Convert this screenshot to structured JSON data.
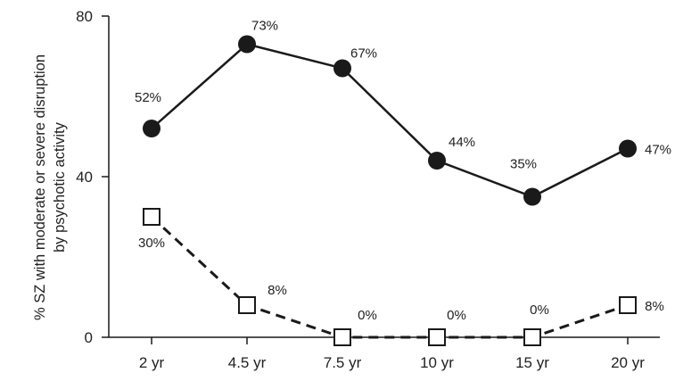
{
  "chart_data": {
    "type": "line",
    "categories": [
      "2 yr",
      "4.5 yr",
      "7.5 yr",
      "10 yr",
      "15 yr",
      "20 yr"
    ],
    "ylabel_line1": "% SZ with moderate or severe disruption",
    "ylabel_line2": "by psychotic activity",
    "ylim": [
      0,
      80
    ],
    "yticks": [
      "0",
      "40",
      "80"
    ],
    "grid": false,
    "legend": "none",
    "series": [
      {
        "marker": "filled-circle",
        "line": "solid",
        "color": "#1a1a1a",
        "values": [
          52,
          73,
          67,
          44,
          35,
          47
        ],
        "labels": [
          "52%",
          "73%",
          "67%",
          "44%",
          "35%",
          "47%"
        ]
      },
      {
        "marker": "open-square",
        "line": "dashed",
        "color": "#1a1a1a",
        "values": [
          30,
          8,
          0,
          0,
          0,
          8
        ],
        "labels": [
          "30%",
          "8%",
          "0%",
          "0%",
          "0%",
          "8%"
        ]
      }
    ]
  }
}
